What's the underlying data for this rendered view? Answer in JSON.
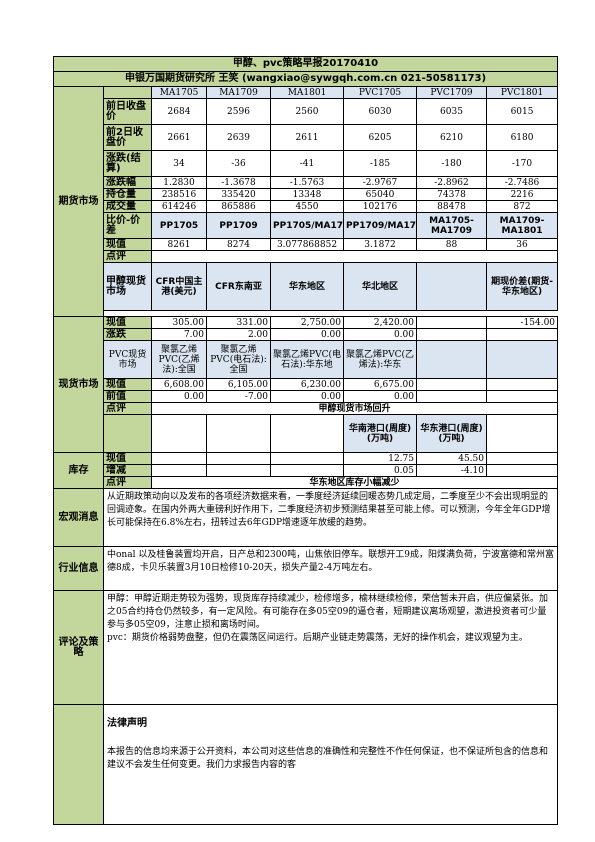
{
  "header": {
    "title": "甲醇、pvc策略早报20170410",
    "subtitle": "申银万国期货研究所 王笑 (wangxiao@sywgqh.com.cn 021-50581173)"
  },
  "futures": {
    "section_label": "期货市场",
    "contracts": [
      "MA1705",
      "MA1709",
      "MA1801",
      "PVC1705",
      "PVC1709",
      "PVC1801"
    ],
    "rows": [
      {
        "label": "前日收盘价",
        "values": [
          "2684",
          "2596",
          "2560",
          "6030",
          "6035",
          "6015"
        ]
      },
      {
        "label": "前2日收盘价",
        "values": [
          "2661",
          "2639",
          "2611",
          "6205",
          "6210",
          "6180"
        ]
      },
      {
        "label": "涨跌(结算)",
        "values": [
          "34",
          "-36",
          "-41",
          "-185",
          "-180",
          "-170"
        ]
      },
      {
        "label": "涨跌幅",
        "values": [
          "1.2830",
          "-1.3678",
          "-1.5763",
          "-2.9767",
          "-2.8962",
          "-2.7486"
        ]
      },
      {
        "label": "持仓量",
        "values": [
          "238516",
          "335420",
          "13348",
          "65040",
          "74378",
          "2216"
        ]
      },
      {
        "label": "成交量",
        "values": [
          "614246",
          "865886",
          "4550",
          "102176",
          "88478",
          "872"
        ]
      }
    ],
    "spread_label": "比价-价差",
    "spread_headers": [
      "PP1705",
      "PP1709",
      "PP1705/MA1705",
      "PP1709/MA1709",
      "MA1705-MA1709",
      "MA1709-MA1801"
    ],
    "spread_row_label": "现值",
    "spread_values": [
      "8261",
      "8274",
      "3.077868852",
      "3.1872",
      "88",
      "36"
    ],
    "comment_label": "点评",
    "comment": ""
  },
  "spot": {
    "section_label": "现货市场",
    "methanol_header": "甲醇现货市场",
    "methanol_cols": [
      "CFR中国主港(美元)",
      "CFR东南亚",
      "华东地区",
      "华北地区",
      "",
      "期现价差(期货-华东地区)"
    ],
    "methanol_rows": [
      {
        "label": "现值",
        "values": [
          "305.00",
          "331.00",
          "2,750.00",
          "2,420.00",
          "",
          "-154.00"
        ]
      },
      {
        "label": "涨跌",
        "values": [
          "7.00",
          "2.00",
          "0.00",
          "0.00",
          "",
          ""
        ]
      }
    ],
    "pvc_header": "PVC现货市场",
    "pvc_cols": [
      "聚氯乙烯PVC(乙烯法):全国",
      "聚氯乙烯PVC(电石法):全国",
      "聚氯乙烯PVC(电石法):华东地",
      "聚氯乙烯PVC(乙烯法):华东",
      "",
      ""
    ],
    "pvc_rows": [
      {
        "label": "现值",
        "values": [
          "6,608.00",
          "6,105.00",
          "6,230.00",
          "6,675.00",
          "",
          ""
        ]
      },
      {
        "label": "前值",
        "values": [
          "0.00",
          "-7.00",
          "0.00",
          "0.00",
          "",
          ""
        ]
      }
    ],
    "comment_label": "点评",
    "comment": "甲醇现货市场回升"
  },
  "inventory": {
    "section_label": "库存",
    "cols": [
      "华南港口(周度)(万吨)",
      "华东港口(周度)(万吨)"
    ],
    "rows": [
      {
        "label": "现值",
        "values": [
          "12.75",
          "45.50"
        ]
      },
      {
        "label": "增减",
        "values": [
          "0.05",
          "-4.10"
        ]
      }
    ],
    "comment_label": "点评",
    "comment": "华东地区库存小幅减少"
  },
  "macro": {
    "label": "宏观消息",
    "text": "从近期政策动向以及发布的各项经济数据来看，一季度经济延续回暖态势几成定局，二季度至少不会出现明显的回调迹象。在国内外两大重磅利好作用下，二季度经济初步预测结果甚至可能上修。可以预测，今年全年GDP增长可能保持在6.8%左右，扭转过去6年GDP增速逐年放缓的趋势。"
  },
  "industry": {
    "label": "行业信息",
    "text": "中onal 以及桂鲁装置均开启，日产总和2300吨，山焦依旧停车。联想开工9成，阳煤满负荷，宁波富德和常州富德8成，卡贝乐装置3月10日检修10-20天，损失产量2-4万吨左右。"
  },
  "strategy": {
    "label": "评论及策略",
    "text1": "甲醇：甲醇近期走势较为强势，现货库存持续减少，检修增多，榆林继续检修，荣信暂未开启，供应偏紧张。加之05合约持仓仍然较多，有一定风险。有可能存在多05空09的逼仓者，短期建议离场观望，激进投资者可少量参与多05空09，注意止损和离场时间。",
    "text2": "pvc：期货价格弱势盘整，但仍在震荡区间运行。后期产业链走势震荡，无好的操作机会，建议观望为主。"
  },
  "legal": {
    "title": "法律声明",
    "text": "本报告的信息均来源于公开资料，本公司对这些信息的准确性和完整性不作任何保证，也不保证所包含的信息和建议不会发生任何变更。我们力求报告内容的客"
  }
}
